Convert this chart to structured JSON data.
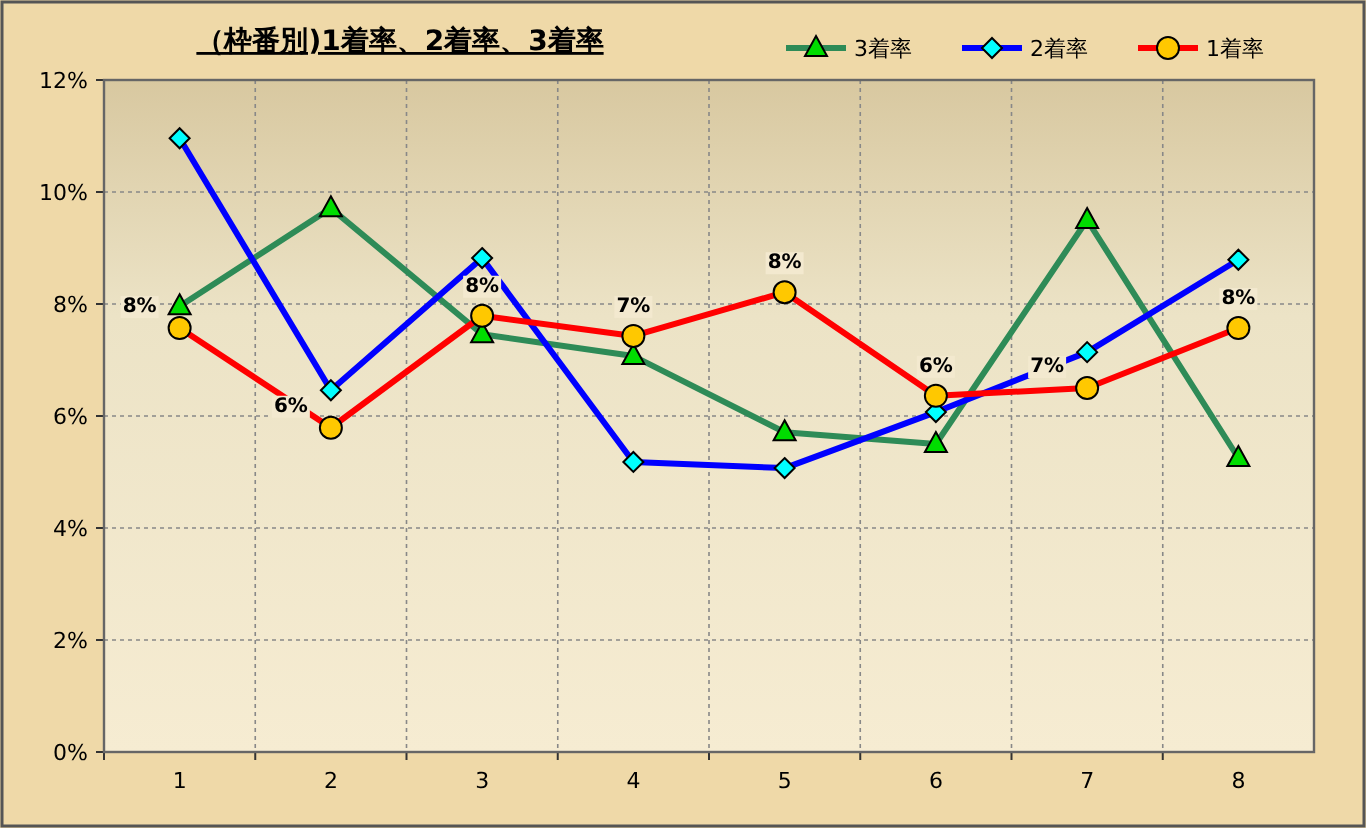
{
  "chart_data": {
    "type": "line",
    "title": "（枠番別)1着率、2着率、3着率",
    "categories": [
      "1",
      "2",
      "3",
      "4",
      "5",
      "6",
      "7",
      "8"
    ],
    "series": [
      {
        "name": "3着率",
        "color": "#2e8b57",
        "marker": "triangle",
        "values": [
          7.96,
          9.71,
          7.46,
          7.07,
          5.71,
          5.5,
          9.5,
          5.25
        ]
      },
      {
        "name": "2着率",
        "color": "#0000ff",
        "marker": "diamond",
        "values": [
          10.96,
          6.46,
          8.82,
          5.18,
          5.07,
          6.07,
          7.14,
          8.79
        ]
      },
      {
        "name": "1着率",
        "color": "#ff0000",
        "marker": "circle",
        "values": [
          7.57,
          5.79,
          7.79,
          7.43,
          8.21,
          6.36,
          6.5,
          7.57
        ],
        "value_labels": [
          "8%",
          "6%",
          "8%",
          "7%",
          "8%",
          "6%",
          "7%",
          "8%"
        ]
      }
    ],
    "ylim": [
      0,
      12
    ],
    "yticks": [
      {
        "value": 0,
        "label": "0%"
      },
      {
        "value": 2,
        "label": "2%"
      },
      {
        "value": 4,
        "label": "4%"
      },
      {
        "value": 6,
        "label": "6%"
      },
      {
        "value": 8,
        "label": "8%"
      },
      {
        "value": 10,
        "label": "10%"
      },
      {
        "value": 12,
        "label": "12%"
      }
    ],
    "grid": true,
    "legend": "top right",
    "line_style": "solid"
  }
}
